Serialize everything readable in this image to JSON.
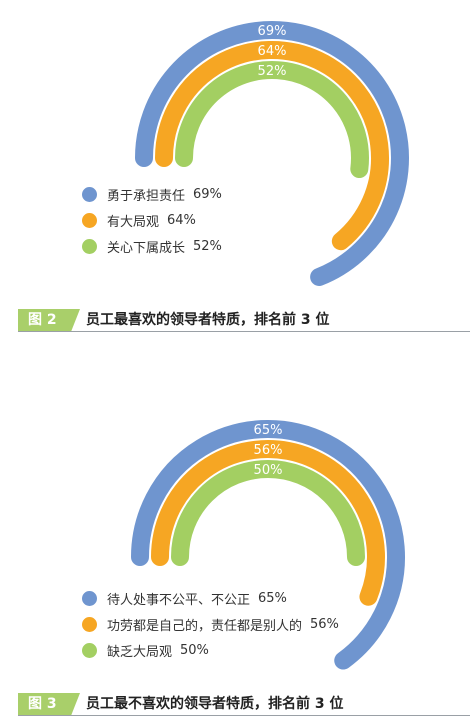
{
  "colors": {
    "blue": "#6f95cf",
    "orange": "#f6a623",
    "green": "#a3cf62",
    "caption_tag": "#a9cf6a"
  },
  "charts": [
    {
      "chart_data": {
        "type": "arc-bar",
        "series": [
          {
            "name": "勇于承担责任",
            "value": 69,
            "label": "69%",
            "legend_pct": "69%",
            "color": "#6f95cf"
          },
          {
            "name": "有大局观",
            "value": 64,
            "label": "64%",
            "legend_pct": "64%",
            "color": "#f6a623"
          },
          {
            "name": "关心下属成长",
            "value": 52,
            "label": "52%",
            "legend_pct": "52%",
            "color": "#a3cf62"
          }
        ],
        "title": "员工最喜欢的领导者特质，排名前 3 位",
        "figure_label": "图 2"
      }
    },
    {
      "chart_data": {
        "type": "arc-bar",
        "series": [
          {
            "name": "待人处事不公平、不公正",
            "value": 65,
            "label": "65%",
            "legend_pct": "65%",
            "color": "#6f95cf"
          },
          {
            "name": "功劳都是自己的，责任都是别人的",
            "value": 56,
            "label": "56%",
            "legend_pct": "56%",
            "color": "#f6a623"
          },
          {
            "name": "缺乏大局观",
            "value": 50,
            "label": "50%",
            "legend_pct": "50%",
            "color": "#a3cf62"
          }
        ],
        "title": "员工最不喜欢的领导者特质，排名前 3 位",
        "figure_label": "图 3"
      }
    }
  ]
}
